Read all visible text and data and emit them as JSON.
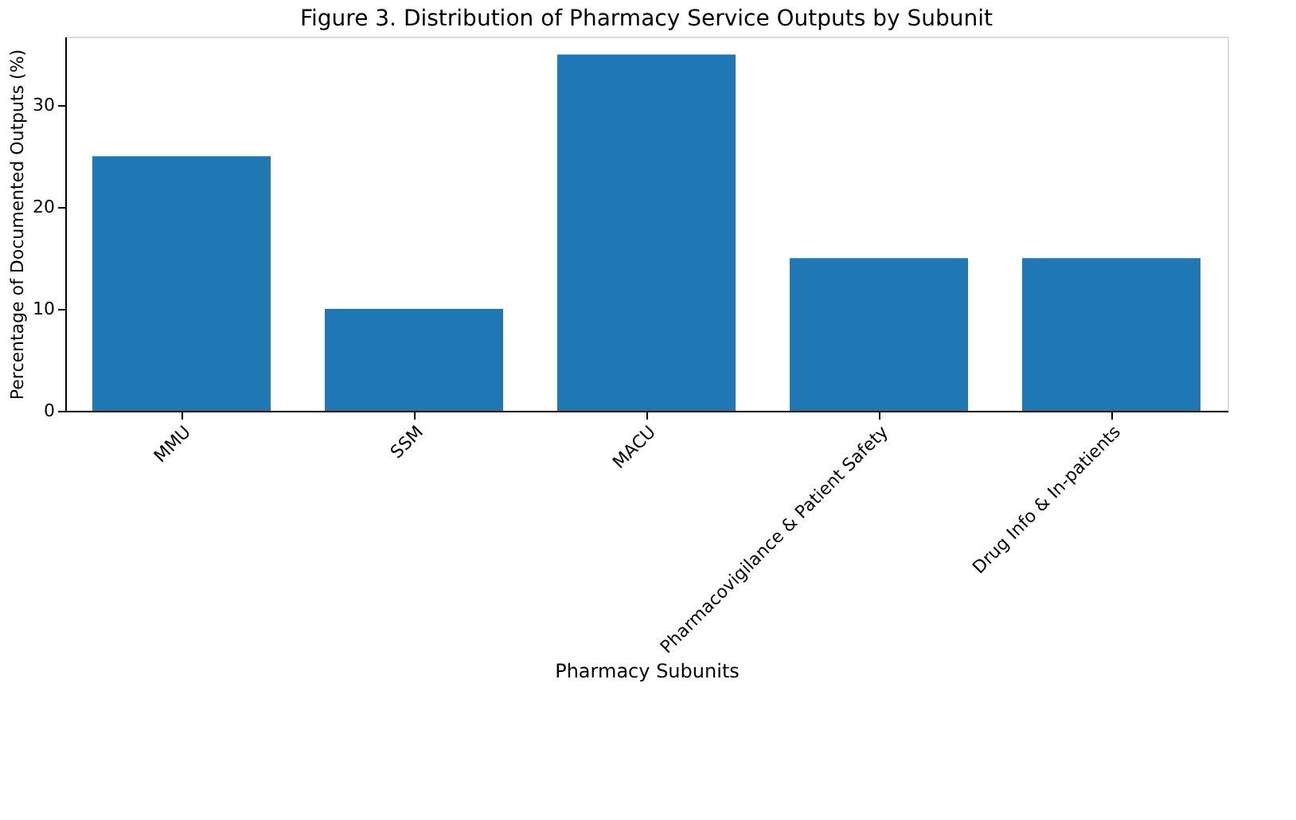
{
  "chart_data": {
    "type": "bar",
    "title": "Figure 3. Distribution of Pharmacy Service Outputs by Subunit",
    "xlabel": "Pharmacy Subunits",
    "ylabel": "Percentage of Documented Outputs (%)",
    "categories": [
      "MMU",
      "SSM",
      "MACU",
      "Pharmacovigilance & Patient Safety",
      "Drug Info & In-patients"
    ],
    "values": [
      25,
      10,
      35,
      15,
      15
    ],
    "color": "#1f77b4",
    "ylim": [
      0,
      36.75
    ],
    "yticks": [
      0,
      10,
      20,
      30
    ],
    "grid": false
  }
}
